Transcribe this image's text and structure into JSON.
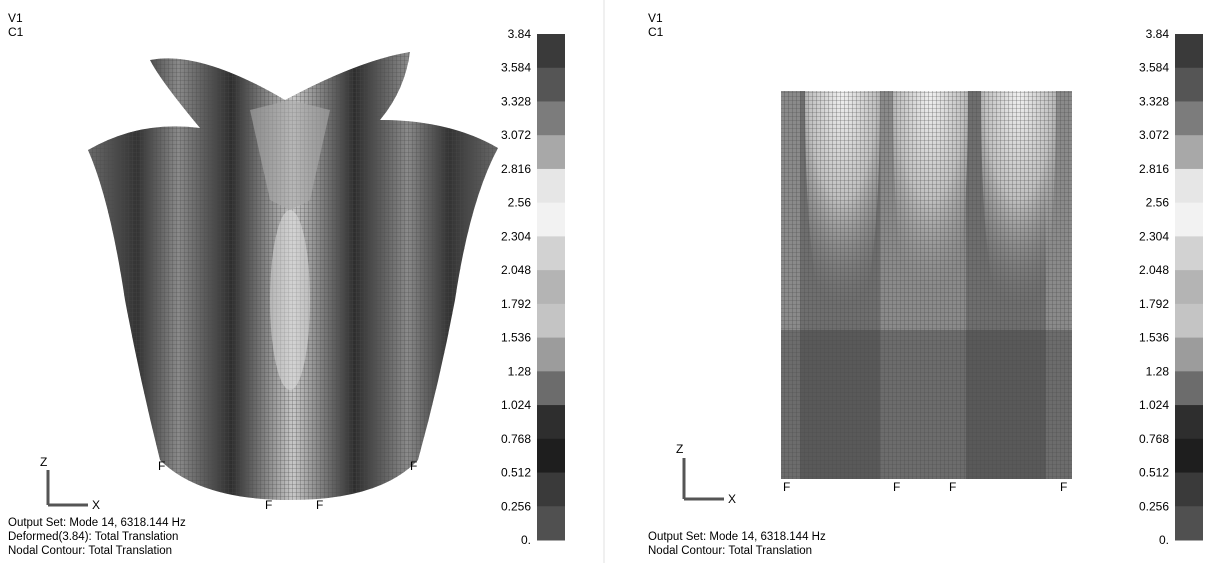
{
  "panels": [
    {
      "view_label": "V1",
      "case_label": "C1",
      "legend": {
        "labels": [
          "3.84",
          "3.584",
          "3.328",
          "3.072",
          "2.816",
          "2.56",
          "2.304",
          "2.048",
          "1.792",
          "1.536",
          "1.28",
          "1.024",
          "0.768",
          "0.512",
          "0.256",
          "0."
        ],
        "colors": [
          "#3a3a3a",
          "#555555",
          "#7c7c7c",
          "#a8a8a8",
          "#e6e6e6",
          "#f2f2f2",
          "#d2d2d2",
          "#b4b4b4",
          "#c4c4c4",
          "#9c9c9c",
          "#6c6c6c",
          "#2e2e2e",
          "#1e1e1e",
          "#3a3a3a",
          "#505050"
        ]
      },
      "axis": {
        "z": "Z",
        "x": "X"
      },
      "markers": [
        "F",
        "F",
        "F",
        "F"
      ],
      "output_lines": [
        "Output Set: Mode 14, 6318.144 Hz",
        "Deformed(3.84): Total Translation",
        "Nodal Contour: Total Translation"
      ]
    },
    {
      "view_label": "V1",
      "case_label": "C1",
      "legend": {
        "labels": [
          "3.84",
          "3.584",
          "3.328",
          "3.072",
          "2.816",
          "2.56",
          "2.304",
          "2.048",
          "1.792",
          "1.536",
          "1.28",
          "1.024",
          "0.768",
          "0.512",
          "0.256",
          "0."
        ],
        "colors": [
          "#3a3a3a",
          "#555555",
          "#7c7c7c",
          "#a8a8a8",
          "#e6e6e6",
          "#f2f2f2",
          "#d2d2d2",
          "#b4b4b4",
          "#c4c4c4",
          "#9c9c9c",
          "#6c6c6c",
          "#2e2e2e",
          "#1e1e1e",
          "#3a3a3a",
          "#505050"
        ]
      },
      "axis": {
        "z": "Z",
        "x": "X"
      },
      "markers": [
        "F",
        "F",
        "F",
        "F"
      ],
      "output_lines": [
        "Output Set: Mode 14, 6318.144 Hz",
        "Nodal Contour: Total Translation"
      ]
    }
  ]
}
